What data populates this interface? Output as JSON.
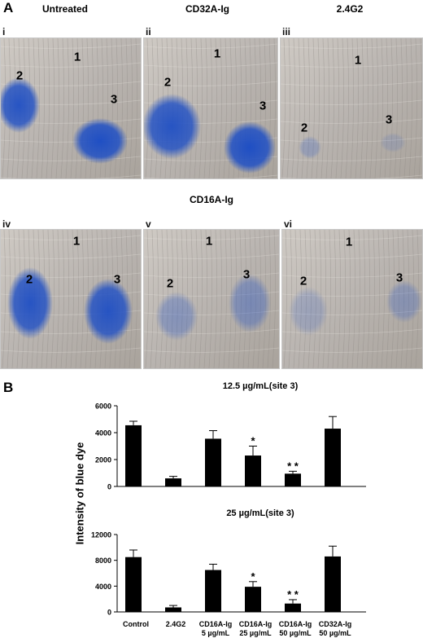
{
  "panel_a": {
    "letter": "A",
    "col_titles": [
      "Untreated",
      "CD32A-Ig",
      "2.4G2"
    ],
    "row2_title": "CD16A-Ig",
    "panels": [
      {
        "label": "i",
        "sites": [
          "1",
          "2",
          "3"
        ]
      },
      {
        "label": "ii",
        "sites": [
          "1",
          "2",
          "3"
        ]
      },
      {
        "label": "iii",
        "sites": [
          "1",
          "2",
          "3"
        ]
      },
      {
        "label": "iv",
        "sites": [
          "1",
          "2",
          "3"
        ]
      },
      {
        "label": "v",
        "sites": [
          "1",
          "2",
          "3"
        ]
      },
      {
        "label": "vi",
        "sites": [
          "1",
          "2",
          "3"
        ]
      }
    ],
    "colors": {
      "dye": "#1f4fc4",
      "skin": "#b9b4b0"
    }
  },
  "panel_b": {
    "letter": "B",
    "ylabel": "Intensity of blue dye",
    "categories": [
      {
        "line1": "Control",
        "line2": ""
      },
      {
        "line1": "2.4G2",
        "line2": ""
      },
      {
        "line1": "CD16A-Ig",
        "line2": "5 µg/mL"
      },
      {
        "line1": "CD16A-Ig",
        "line2": "25 µg/mL"
      },
      {
        "line1": "CD16A-Ig",
        "line2": "50 µg/mL"
      },
      {
        "line1": "CD32A-Ig",
        "line2": "50 µg/mL"
      }
    ]
  },
  "chart_data": [
    {
      "type": "bar",
      "title": "12.5 µg/mL(site 3)",
      "categories": [
        "Control",
        "2.4G2",
        "CD16A-Ig 5 µg/mL",
        "CD16A-Ig 25 µg/mL",
        "CD16A-Ig 50 µg/mL",
        "CD32A-Ig 50 µg/mL"
      ],
      "values": [
        4550,
        600,
        3550,
        2300,
        950,
        4300
      ],
      "errors": [
        300,
        150,
        600,
        700,
        180,
        900
      ],
      "annotations": [
        "",
        "",
        "",
        "*",
        "* *",
        ""
      ],
      "ylim": [
        0,
        6000
      ],
      "yticks": [
        0,
        2000,
        4000,
        6000
      ],
      "grid": false
    },
    {
      "type": "bar",
      "title": "25 µg/mL(site 3)",
      "categories": [
        "Control",
        "2.4G2",
        "CD16A-Ig 5 µg/mL",
        "CD16A-Ig 25 µg/mL",
        "CD16A-Ig 50 µg/mL",
        "CD32A-Ig 50 µg/mL"
      ],
      "values": [
        8500,
        700,
        6500,
        3900,
        1300,
        8600
      ],
      "errors": [
        1100,
        300,
        900,
        800,
        600,
        1600
      ],
      "annotations": [
        "",
        "",
        "",
        "*",
        "* *",
        ""
      ],
      "ylim": [
        0,
        12000
      ],
      "yticks": [
        0,
        4000,
        8000,
        12000
      ],
      "grid": false
    }
  ]
}
